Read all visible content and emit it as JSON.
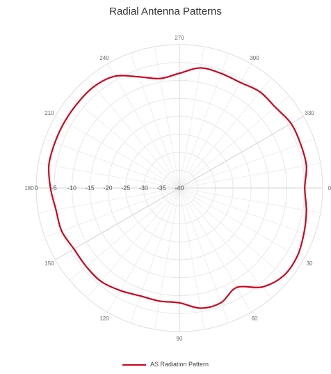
{
  "chart_data": {
    "type": "line",
    "subtype": "polar",
    "title": "Radial Antenna Patterns",
    "angle_ticks": [
      "270",
      "300",
      "330",
      "0",
      "30",
      "60",
      "90",
      "120",
      "150",
      "180",
      "210",
      "240"
    ],
    "radial_ticks": [
      "-40",
      "-35",
      "-30",
      "-25",
      "-20",
      "-15",
      "-10",
      "-5",
      "0"
    ],
    "rlim": [
      -40,
      0
    ],
    "grid": true,
    "legend_position": "bottom",
    "series": [
      {
        "name": "AS Radiation Pattern",
        "color": "#d0021b",
        "theta": [
          0,
          10,
          20,
          30,
          40,
          50,
          60,
          70,
          80,
          90,
          100,
          110,
          120,
          130,
          140,
          150,
          160,
          170,
          180,
          190,
          200,
          210,
          220,
          230,
          240,
          250,
          260,
          270,
          280,
          290,
          300,
          310,
          320,
          330,
          340,
          350
        ],
        "r": [
          -5,
          -4,
          -4,
          -4,
          -5,
          -5,
          -6,
          -6,
          -6,
          -8,
          -9,
          -7,
          -4,
          -3,
          -3,
          -3,
          -3,
          -3,
          -4,
          -5,
          -5,
          -6,
          -6,
          -6,
          -7,
          -8,
          -8,
          -8,
          -6,
          -6,
          -8,
          -4,
          -2,
          -2,
          -3,
          -4
        ]
      }
    ]
  }
}
